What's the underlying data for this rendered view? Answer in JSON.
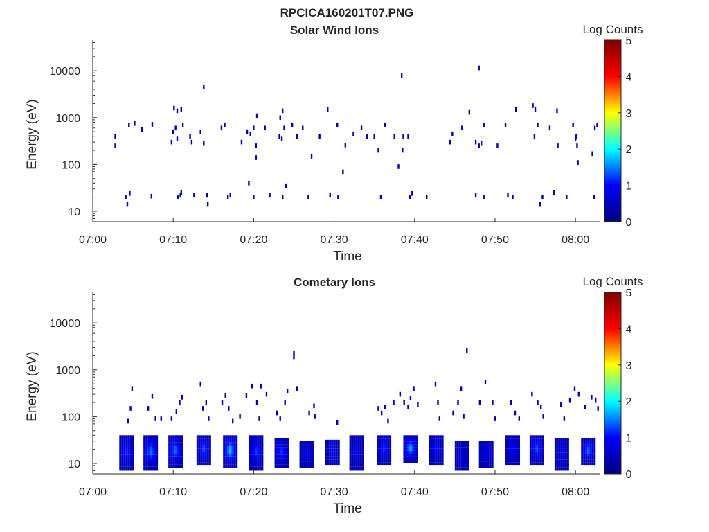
{
  "figure": {
    "title": "RPCICA160201T07.PNG"
  },
  "colors": {
    "axis": "#262626",
    "colormap": [
      "#000080",
      "#0000ff",
      "#00ffff",
      "#ffff00",
      "#ff0000",
      "#800000"
    ]
  },
  "chart_data": [
    {
      "type": "heatmap",
      "title": "Solar Wind Ions",
      "xlabel": "Time",
      "ylabel": "Energy (eV)",
      "x_ticks": [
        "07:00",
        "07:10",
        "07:20",
        "07:30",
        "07:40",
        "07:50",
        "08:00"
      ],
      "y_ticks": [
        "10",
        "100",
        "1000",
        "10000"
      ],
      "y_scale": "log",
      "ylim": [
        6,
        45000
      ],
      "xlim": [
        "07:00",
        "08:03"
      ],
      "colorbar": {
        "label": "Log Counts",
        "ticks": [
          "0",
          "1",
          "2",
          "3",
          "4",
          "5"
        ],
        "range": [
          0,
          5
        ]
      },
      "points": [
        [
          2.8,
          400,
          0.3
        ],
        [
          2.8,
          250,
          0.3
        ],
        [
          4.1,
          20,
          0.3
        ],
        [
          4.3,
          14,
          0.3
        ],
        [
          4.5,
          700,
          0.3
        ],
        [
          4.6,
          24,
          0.3
        ],
        [
          5.2,
          750,
          0.3
        ],
        [
          6.1,
          550,
          0.3
        ],
        [
          7.3,
          21,
          0.3
        ],
        [
          7.4,
          720,
          0.3
        ],
        [
          9.8,
          300,
          0.3
        ],
        [
          10.0,
          500,
          0.3
        ],
        [
          10.1,
          1600,
          0.3
        ],
        [
          10.3,
          600,
          0.3
        ],
        [
          10.5,
          1400,
          0.3
        ],
        [
          10.5,
          350,
          0.3
        ],
        [
          10.6,
          20,
          0.3
        ],
        [
          10.9,
          22,
          0.3
        ],
        [
          11.0,
          1500,
          0.3
        ],
        [
          11.0,
          25,
          0.3
        ],
        [
          11.2,
          700,
          0.3
        ],
        [
          12.1,
          400,
          0.3
        ],
        [
          12.3,
          300,
          0.3
        ],
        [
          12.6,
          22,
          0.3
        ],
        [
          13.4,
          500,
          0.3
        ],
        [
          13.8,
          4500,
          0.3
        ],
        [
          13.8,
          280,
          0.3
        ],
        [
          14.2,
          22,
          0.3
        ],
        [
          14.3,
          14,
          0.3
        ],
        [
          16.0,
          600,
          0.3
        ],
        [
          16.4,
          700,
          0.3
        ],
        [
          16.8,
          20,
          0.3
        ],
        [
          17.1,
          22,
          0.3
        ],
        [
          18.5,
          300,
          0.3
        ],
        [
          19.2,
          500,
          0.3
        ],
        [
          19.6,
          450,
          0.3
        ],
        [
          20.0,
          600,
          0.3
        ],
        [
          20.3,
          250,
          0.3
        ],
        [
          20.3,
          140,
          0.3
        ],
        [
          20.4,
          1100,
          0.3
        ],
        [
          20.0,
          20,
          0.3
        ],
        [
          19.4,
          40,
          0.3
        ],
        [
          21.4,
          600,
          0.3
        ],
        [
          22.0,
          22,
          0.3
        ],
        [
          23.2,
          400,
          0.3
        ],
        [
          23.5,
          350,
          0.3
        ],
        [
          23.8,
          600,
          0.3
        ],
        [
          23.3,
          1000,
          0.3
        ],
        [
          23.6,
          1400,
          0.3
        ],
        [
          23.6,
          20,
          0.3
        ],
        [
          24.0,
          35,
          0.3
        ],
        [
          24.8,
          700,
          0.3
        ],
        [
          25.4,
          400,
          0.3
        ],
        [
          26.1,
          600,
          0.3
        ],
        [
          26.8,
          20,
          0.3
        ],
        [
          27.2,
          150,
          0.3
        ],
        [
          28.2,
          400,
          0.3
        ],
        [
          29.2,
          1500,
          0.3
        ],
        [
          29.5,
          22,
          0.3
        ],
        [
          30.5,
          20,
          0.3
        ],
        [
          30.4,
          700,
          0.3
        ],
        [
          31.1,
          70,
          0.3
        ],
        [
          31.4,
          260,
          0.3
        ],
        [
          32.4,
          450,
          0.3
        ],
        [
          33.4,
          600,
          0.3
        ],
        [
          34.1,
          400,
          0.3
        ],
        [
          35.0,
          400,
          0.3
        ],
        [
          35.5,
          200,
          0.3
        ],
        [
          35.8,
          20,
          0.3
        ],
        [
          36.3,
          700,
          0.3
        ],
        [
          37.5,
          400,
          0.3
        ],
        [
          38.4,
          8000,
          0.3
        ],
        [
          38.0,
          90,
          0.3
        ],
        [
          38.6,
          400,
          0.3
        ],
        [
          38.5,
          200,
          0.3
        ],
        [
          39.4,
          20,
          0.3
        ],
        [
          39.7,
          24,
          0.3
        ],
        [
          39.2,
          400,
          0.3
        ],
        [
          41.5,
          20,
          0.3
        ],
        [
          44.4,
          300,
          0.3
        ],
        [
          44.7,
          450,
          0.3
        ],
        [
          45.9,
          600,
          0.3
        ],
        [
          46.8,
          1300,
          0.3
        ],
        [
          47.6,
          22,
          0.3
        ],
        [
          48.0,
          11500,
          0.3
        ],
        [
          47.6,
          300,
          0.3
        ],
        [
          48.0,
          250,
          0.3
        ],
        [
          48.3,
          280,
          0.3
        ],
        [
          48.6,
          700,
          0.3
        ],
        [
          48.6,
          20,
          0.3
        ],
        [
          50.3,
          250,
          0.3
        ],
        [
          51.3,
          700,
          0.3
        ],
        [
          51.6,
          22,
          0.3
        ],
        [
          52.2,
          20,
          0.3
        ],
        [
          52.6,
          1500,
          0.3
        ],
        [
          54.7,
          1800,
          0.3
        ],
        [
          54.9,
          400,
          0.3
        ],
        [
          55.0,
          1500,
          0.3
        ],
        [
          55.3,
          700,
          0.3
        ],
        [
          55.6,
          14,
          0.3
        ],
        [
          55.9,
          20,
          0.3
        ],
        [
          56.8,
          600,
          0.3
        ],
        [
          57.3,
          25,
          0.3
        ],
        [
          57.7,
          1400,
          0.3
        ],
        [
          57.8,
          250,
          0.3
        ],
        [
          58.9,
          20,
          0.3
        ],
        [
          59.7,
          700,
          0.3
        ],
        [
          60.0,
          350,
          0.3
        ],
        [
          60.1,
          400,
          0.3
        ],
        [
          60.2,
          250,
          0.3
        ],
        [
          60.3,
          110,
          0.3
        ],
        [
          62.1,
          170,
          0.3
        ],
        [
          62.3,
          20,
          0.3
        ],
        [
          62.4,
          600,
          0.3
        ],
        [
          62.7,
          700,
          0.3
        ]
      ]
    },
    {
      "type": "heatmap",
      "title": "Cometary Ions",
      "xlabel": "Time",
      "ylabel": "Energy (eV)",
      "x_ticks": [
        "07:00",
        "07:10",
        "07:20",
        "07:30",
        "07:40",
        "07:50",
        "08:00"
      ],
      "y_ticks": [
        "10",
        "100",
        "1000",
        "10000"
      ],
      "y_scale": "log",
      "ylim": [
        6,
        45000
      ],
      "xlim": [
        "07:00",
        "08:03"
      ],
      "colorbar": {
        "label": "Log Counts",
        "ticks": [
          "0",
          "1",
          "2",
          "3",
          "4",
          "5"
        ],
        "range": [
          0,
          5
        ]
      },
      "columns": [
        {
          "t": 4.2,
          "lo": 7,
          "hi": 40,
          "peak": 1.2
        },
        {
          "t": 7.2,
          "lo": 7,
          "hi": 40,
          "peak": 1.6
        },
        {
          "t": 10.3,
          "lo": 8,
          "hi": 40,
          "peak": 1.5
        },
        {
          "t": 13.8,
          "lo": 9,
          "hi": 40,
          "peak": 1.4
        },
        {
          "t": 17.1,
          "lo": 8,
          "hi": 40,
          "peak": 1.9
        },
        {
          "t": 20.3,
          "lo": 7,
          "hi": 40,
          "peak": 1.3
        },
        {
          "t": 23.5,
          "lo": 8,
          "hi": 35,
          "peak": 1.3
        },
        {
          "t": 26.6,
          "lo": 8,
          "hi": 30,
          "peak": 0.9
        },
        {
          "t": 29.8,
          "lo": 9,
          "hi": 32,
          "peak": 0.9
        },
        {
          "t": 32.8,
          "lo": 7,
          "hi": 40,
          "peak": 0.8
        },
        {
          "t": 36.2,
          "lo": 9,
          "hi": 40,
          "peak": 1.2
        },
        {
          "t": 39.5,
          "lo": 10,
          "hi": 40,
          "peak": 1.8
        },
        {
          "t": 42.7,
          "lo": 9,
          "hi": 40,
          "peak": 1.0
        },
        {
          "t": 45.9,
          "lo": 7,
          "hi": 30,
          "peak": 0.8
        },
        {
          "t": 48.9,
          "lo": 8,
          "hi": 30,
          "peak": 0.9
        },
        {
          "t": 52.2,
          "lo": 9,
          "hi": 40,
          "peak": 1.0
        },
        {
          "t": 55.2,
          "lo": 9,
          "hi": 40,
          "peak": 1.4
        },
        {
          "t": 58.3,
          "lo": 7,
          "hi": 35,
          "peak": 0.9
        },
        {
          "t": 61.6,
          "lo": 9,
          "hi": 35,
          "peak": 1.5
        }
      ],
      "points": [
        [
          4.4,
          80,
          0.3
        ],
        [
          4.7,
          150,
          0.3
        ],
        [
          4.9,
          400,
          0.3
        ],
        [
          6.9,
          150,
          0.3
        ],
        [
          7.4,
          270,
          0.3
        ],
        [
          7.8,
          90,
          0.3
        ],
        [
          8.5,
          90,
          0.3
        ],
        [
          9.8,
          90,
          0.3
        ],
        [
          10.4,
          130,
          0.3
        ],
        [
          10.8,
          200,
          0.3
        ],
        [
          11.1,
          260,
          0.3
        ],
        [
          13.4,
          500,
          0.3
        ],
        [
          13.7,
          150,
          0.3
        ],
        [
          14.1,
          200,
          0.3
        ],
        [
          14.4,
          90,
          0.3
        ],
        [
          16.1,
          200,
          0.3
        ],
        [
          16.5,
          280,
          0.3
        ],
        [
          16.9,
          150,
          0.3
        ],
        [
          17.4,
          80,
          0.3
        ],
        [
          18.3,
          100,
          0.3
        ],
        [
          19.1,
          280,
          0.3
        ],
        [
          19.8,
          450,
          0.3
        ],
        [
          20.4,
          200,
          0.3
        ],
        [
          20.7,
          90,
          0.3
        ],
        [
          20.9,
          450,
          0.3
        ],
        [
          21.6,
          300,
          0.3
        ],
        [
          22.9,
          120,
          0.3
        ],
        [
          23.3,
          90,
          0.3
        ],
        [
          23.9,
          200,
          0.3
        ],
        [
          24.2,
          350,
          0.3
        ],
        [
          25.0,
          2300,
          0.3
        ],
        [
          25.0,
          1900,
          0.3
        ],
        [
          25.4,
          400,
          0.3
        ],
        [
          26.9,
          120,
          0.3
        ],
        [
          27.5,
          170,
          0.3
        ],
        [
          27.6,
          100,
          0.3
        ],
        [
          30.4,
          75,
          0.3
        ],
        [
          35.5,
          150,
          0.3
        ],
        [
          35.9,
          120,
          0.3
        ],
        [
          36.3,
          160,
          0.3
        ],
        [
          36.7,
          80,
          0.3
        ],
        [
          37.4,
          200,
          0.3
        ],
        [
          38.2,
          300,
          0.3
        ],
        [
          38.7,
          200,
          0.3
        ],
        [
          39.2,
          160,
          0.3
        ],
        [
          39.5,
          250,
          0.3
        ],
        [
          39.9,
          400,
          0.3
        ],
        [
          40.4,
          180,
          0.3
        ],
        [
          42.6,
          500,
          0.3
        ],
        [
          42.9,
          200,
          0.3
        ],
        [
          43.1,
          90,
          0.3
        ],
        [
          44.8,
          120,
          0.3
        ],
        [
          45.4,
          200,
          0.3
        ],
        [
          45.8,
          400,
          0.3
        ],
        [
          46.1,
          100,
          0.3
        ],
        [
          46.5,
          2600,
          0.3
        ],
        [
          48.1,
          200,
          0.3
        ],
        [
          48.8,
          550,
          0.3
        ],
        [
          49.7,
          200,
          0.3
        ],
        [
          50.0,
          90,
          0.3
        ],
        [
          52.0,
          200,
          0.3
        ],
        [
          52.5,
          120,
          0.3
        ],
        [
          53.0,
          90,
          0.3
        ],
        [
          54.6,
          300,
          0.3
        ],
        [
          55.3,
          200,
          0.3
        ],
        [
          55.7,
          160,
          0.3
        ],
        [
          56.0,
          100,
          0.3
        ],
        [
          58.2,
          180,
          0.3
        ],
        [
          58.6,
          90,
          0.3
        ],
        [
          59.3,
          220,
          0.3
        ],
        [
          59.9,
          400,
          0.3
        ],
        [
          60.4,
          300,
          0.3
        ],
        [
          61.2,
          160,
          0.3
        ],
        [
          62.0,
          260,
          0.3
        ],
        [
          62.5,
          220,
          0.3
        ],
        [
          62.8,
          150,
          0.3
        ]
      ]
    }
  ]
}
